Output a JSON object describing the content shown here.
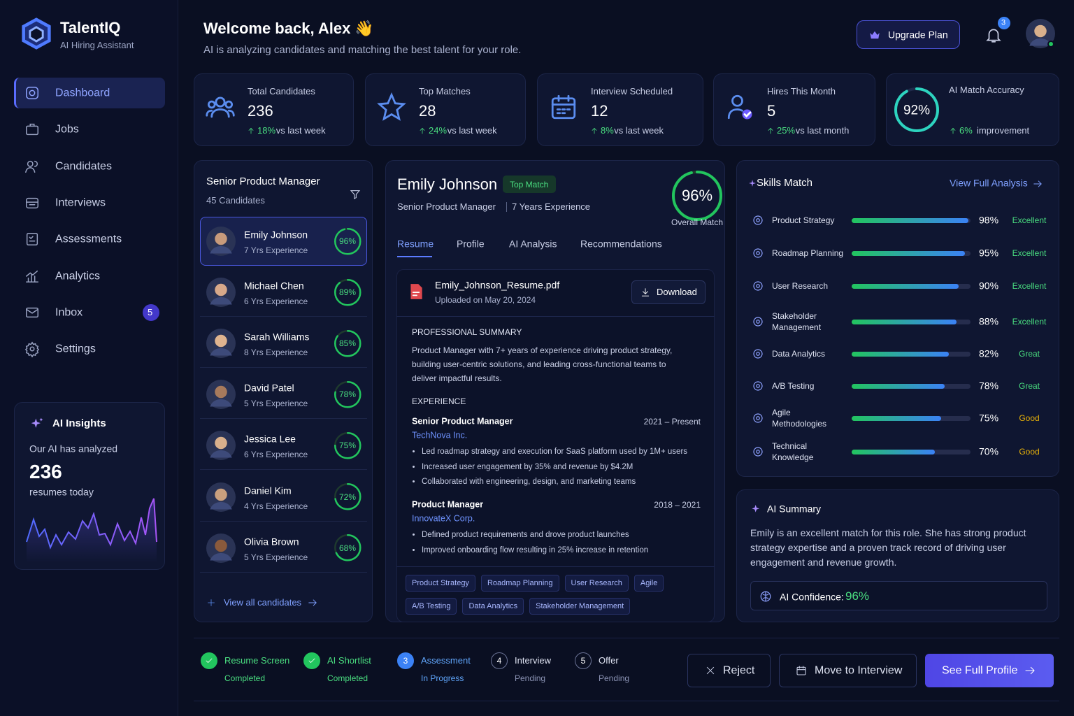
{
  "brand": {
    "name": "TalentIQ",
    "tagline": "AI Hiring Assistant"
  },
  "nav": [
    {
      "label": "Dashboard"
    },
    {
      "label": "Jobs"
    },
    {
      "label": "Candidates"
    },
    {
      "label": "Interviews"
    },
    {
      "label": "Assessments"
    },
    {
      "label": "Analytics"
    },
    {
      "label": "Inbox",
      "badge": "5"
    },
    {
      "label": "Settings"
    }
  ],
  "insights": {
    "title": "AI Insights",
    "text": "Our AI has analyzed",
    "count": "236",
    "suffix": "resumes today"
  },
  "header": {
    "title": "Welcome back, Alex 👋",
    "subtitle": "AI is analyzing candidates and matching the best talent for your role.",
    "upgrade": "Upgrade Plan",
    "notifications": "3"
  },
  "stats": [
    {
      "label": "Total Candidates",
      "value": "236",
      "change": "18%",
      "change_text": "vs last week"
    },
    {
      "label": "Top Matches",
      "value": "28",
      "change": "24%",
      "change_text": "vs last week"
    },
    {
      "label": "Interview Scheduled",
      "value": "12",
      "change": "8%",
      "change_text": "vs last week"
    },
    {
      "label": "Hires This Month",
      "value": "5",
      "change": "25%",
      "change_text": "vs last month"
    },
    {
      "label": "AI Match Accuracy",
      "ring": 92,
      "ring_label": "92%",
      "change": "6%",
      "change_text": "improvement"
    }
  ],
  "job": {
    "title": "Senior Product Manager",
    "count": "45 Candidates",
    "view_all": "View all candidates"
  },
  "candidates": [
    {
      "name": "Emily Johnson",
      "experience": "7 Yrs Experience",
      "match": 96,
      "match_label": "96%"
    },
    {
      "name": "Michael Chen",
      "experience": "6 Yrs Experience",
      "match": 89,
      "match_label": "89%"
    },
    {
      "name": "Sarah Williams",
      "experience": "8 Yrs Experience",
      "match": 85,
      "match_label": "85%"
    },
    {
      "name": "David Patel",
      "experience": "5 Yrs Experience",
      "match": 78,
      "match_label": "78%"
    },
    {
      "name": "Jessica Lee",
      "experience": "6 Yrs Experience",
      "match": 75,
      "match_label": "75%"
    },
    {
      "name": "Daniel Kim",
      "experience": "4 Yrs Experience",
      "match": 72,
      "match_label": "72%"
    },
    {
      "name": "Olivia Brown",
      "experience": "5 Yrs Experience",
      "match": 68,
      "match_label": "68%"
    }
  ],
  "profile": {
    "name": "Emily Johnson",
    "badge": "Top Match",
    "role": "Senior Product Manager",
    "experience": "7 Years Experience",
    "match": 96,
    "match_label": "96%",
    "match_caption": "Overall Match",
    "tabs": [
      "Resume",
      "Profile",
      "AI Analysis",
      "Recommendations"
    ]
  },
  "resume": {
    "file": "Emily_Johnson_Resume.pdf",
    "uploaded": "Uploaded on May 20, 2024",
    "download": "Download",
    "summary_heading": "PROFESSIONAL SUMMARY",
    "summary": "Product Manager with 7+ years of experience driving product strategy, building user-centric solutions, and leading cross-functional teams to deliver impactful results.",
    "experience_heading": "EXPERIENCE",
    "jobs": [
      {
        "title": "Senior Product Manager",
        "company": "TechNova Inc.",
        "dates": "2021 – Present",
        "bullets": [
          "Led roadmap strategy and execution for SaaS platform used by 1M+ users",
          "Increased user engagement by 35% and revenue by $4.2M",
          "Collaborated with engineering, design, and marketing teams"
        ]
      },
      {
        "title": "Product Manager",
        "company": "InnovateX Corp.",
        "dates": "2018 – 2021",
        "bullets": [
          "Defined product requirements and drove product launches",
          "Improved onboarding flow resulting in 25% increase in retention"
        ]
      }
    ],
    "tags": [
      "Product Strategy",
      "Roadmap Planning",
      "User Research",
      "Agile",
      "A/B Testing",
      "Data Analytics",
      "Stakeholder Management"
    ]
  },
  "skills": {
    "title": "Skills Match",
    "link": "View Full Analysis",
    "items": [
      {
        "name": "Product Strategy",
        "value": 98,
        "label": "98%",
        "rating": "Excellent",
        "rating_color": "#4ade80"
      },
      {
        "name": "Roadmap Planning",
        "value": 95,
        "label": "95%",
        "rating": "Excellent",
        "rating_color": "#4ade80"
      },
      {
        "name": "User Research",
        "value": 90,
        "label": "90%",
        "rating": "Excellent",
        "rating_color": "#4ade80"
      },
      {
        "name": "Stakeholder Management",
        "value": 88,
        "label": "88%",
        "rating": "Excellent",
        "rating_color": "#4ade80"
      },
      {
        "name": "Data Analytics",
        "value": 82,
        "label": "82%",
        "rating": "Great",
        "rating_color": "#4ade80"
      },
      {
        "name": "A/B Testing",
        "value": 78,
        "label": "78%",
        "rating": "Great",
        "rating_color": "#4ade80"
      },
      {
        "name": "Agile Methodologies",
        "value": 75,
        "label": "75%",
        "rating": "Good",
        "rating_color": "#eab308"
      },
      {
        "name": "Technical Knowledge",
        "value": 70,
        "label": "70%",
        "rating": "Good",
        "rating_color": "#eab308"
      }
    ]
  },
  "summary": {
    "title": "AI Summary",
    "text": "Emily is an excellent match for this role. She has strong product strategy expertise and a proven track record of driving user engagement and revenue growth.",
    "confidence_label": "AI Confidence:",
    "confidence": "96%"
  },
  "steps": [
    {
      "name": "Resume Screen",
      "status": "Completed"
    },
    {
      "name": "AI Shortlist",
      "status": "Completed"
    },
    {
      "number": "3",
      "name": "Assessment",
      "status": "In Progress"
    },
    {
      "number": "4",
      "name": "Interview",
      "status": "Pending"
    },
    {
      "number": "5",
      "name": "Offer",
      "status": "Pending"
    }
  ],
  "actions": {
    "reject": "Reject",
    "move": "Move to Interview",
    "profile": "See Full Profile"
  }
}
